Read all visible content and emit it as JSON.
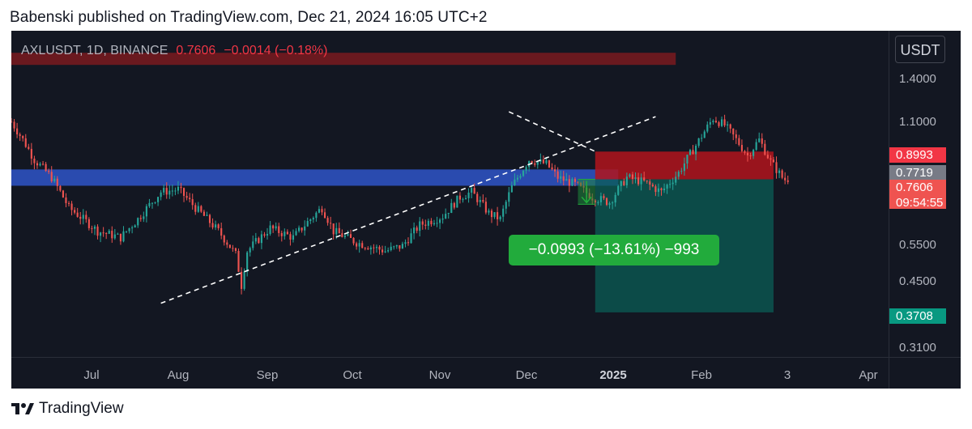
{
  "header": {
    "published_line": "Babenski published on TradingView.com, Dec 21, 2024 16:05 UTC+2"
  },
  "symbol_info": {
    "symbol": "AXLUSDT, 1D, BINANCE",
    "price": "0.7606",
    "change": "−0.0014 (−0.18%)"
  },
  "price_scale": {
    "currency_button": "USDT",
    "tick_labels": [
      "1.4000",
      "1.1000",
      "0.5500",
      "0.4500",
      "0.3100"
    ],
    "tags": {
      "stop": "0.8993",
      "entry": "0.7719",
      "last": "0.7606",
      "countdown": "09:54:55",
      "target": "0.3708"
    }
  },
  "time_axis": {
    "labels": [
      "Jul",
      "Aug",
      "Sep",
      "Oct",
      "Nov",
      "Dec",
      "2025",
      "Feb",
      "3",
      "Apr"
    ]
  },
  "measure_label": "−0.0993 (−13.61%) −993",
  "footer": {
    "brand": "TradingView"
  },
  "colors": {
    "up": "#26a69a",
    "down": "#ef5350",
    "background": "#131722",
    "support_zone": "#2f55c8",
    "resistance_zone": "#7a1a1f",
    "stop_zone": "#b2141c",
    "target_zone": "#0b5e56"
  },
  "chart_data": {
    "type": "candlestick",
    "symbol": "AXLUSDT",
    "interval": "1D",
    "exchange": "BINANCE",
    "scale": "log",
    "y_range": [
      0.29,
      1.75
    ],
    "x_range": [
      "2024-06-11",
      "2025-04-12"
    ],
    "x_tick_labels": [
      "Jul",
      "Aug",
      "Sep",
      "Oct",
      "Nov",
      "Dec",
      "2025",
      "Feb",
      "3",
      "Apr"
    ],
    "y_tick_labels": [
      1.4,
      1.1,
      0.55,
      0.45,
      0.31
    ],
    "last_price": 0.7606,
    "change": -0.0014,
    "change_pct": -0.18,
    "price_path_start": "2024-06-11",
    "price_path": [
      [
        0,
        1.06
      ],
      [
        8,
        0.86
      ],
      [
        14,
        0.78
      ],
      [
        20,
        0.66
      ],
      [
        30,
        0.58
      ],
      [
        38,
        0.56
      ],
      [
        44,
        0.62
      ],
      [
        52,
        0.72
      ],
      [
        58,
        0.73
      ],
      [
        64,
        0.66
      ],
      [
        72,
        0.58
      ],
      [
        78,
        0.51
      ],
      [
        80,
        0.43
      ],
      [
        82,
        0.52
      ],
      [
        90,
        0.59
      ],
      [
        98,
        0.56
      ],
      [
        104,
        0.62
      ],
      [
        108,
        0.66
      ],
      [
        112,
        0.58
      ],
      [
        120,
        0.545
      ],
      [
        130,
        0.52
      ],
      [
        136,
        0.535
      ],
      [
        142,
        0.6
      ],
      [
        150,
        0.63
      ],
      [
        156,
        0.7
      ],
      [
        160,
        0.72
      ],
      [
        166,
        0.64
      ],
      [
        170,
        0.62
      ],
      [
        174,
        0.74
      ],
      [
        180,
        0.86
      ],
      [
        186,
        0.84
      ],
      [
        190,
        0.78
      ],
      [
        196,
        0.75
      ],
      [
        202,
        0.7
      ],
      [
        208,
        0.68
      ],
      [
        214,
        0.78
      ],
      [
        220,
        0.76
      ],
      [
        226,
        0.72
      ],
      [
        232,
        0.8
      ],
      [
        238,
        0.93
      ],
      [
        244,
        1.08
      ],
      [
        248,
        1.04
      ],
      [
        252,
        0.96
      ],
      [
        256,
        0.88
      ],
      [
        260,
        0.96
      ],
      [
        264,
        0.85
      ],
      [
        268,
        0.78
      ],
      [
        270,
        0.7607
      ]
    ],
    "support_zone": [
      0.745,
      0.815
    ],
    "resistance_zone": [
      1.45,
      1.55
    ],
    "ascending_trendline": [
      [
        "2024-08-02",
        0.39
      ],
      [
        "2025-01-21",
        1.09
      ]
    ],
    "descending_trendline": [
      [
        "2024-12-01",
        1.12
      ],
      [
        "2024-12-31",
        0.9
      ]
    ],
    "short_position": {
      "start": "2024-12-31",
      "end": "2025-03-03",
      "entry": 0.7719,
      "stop": 0.8993,
      "target": 0.3708
    },
    "measurement": {
      "change": -0.0993,
      "change_pct": -13.61,
      "ticks": -993
    }
  }
}
